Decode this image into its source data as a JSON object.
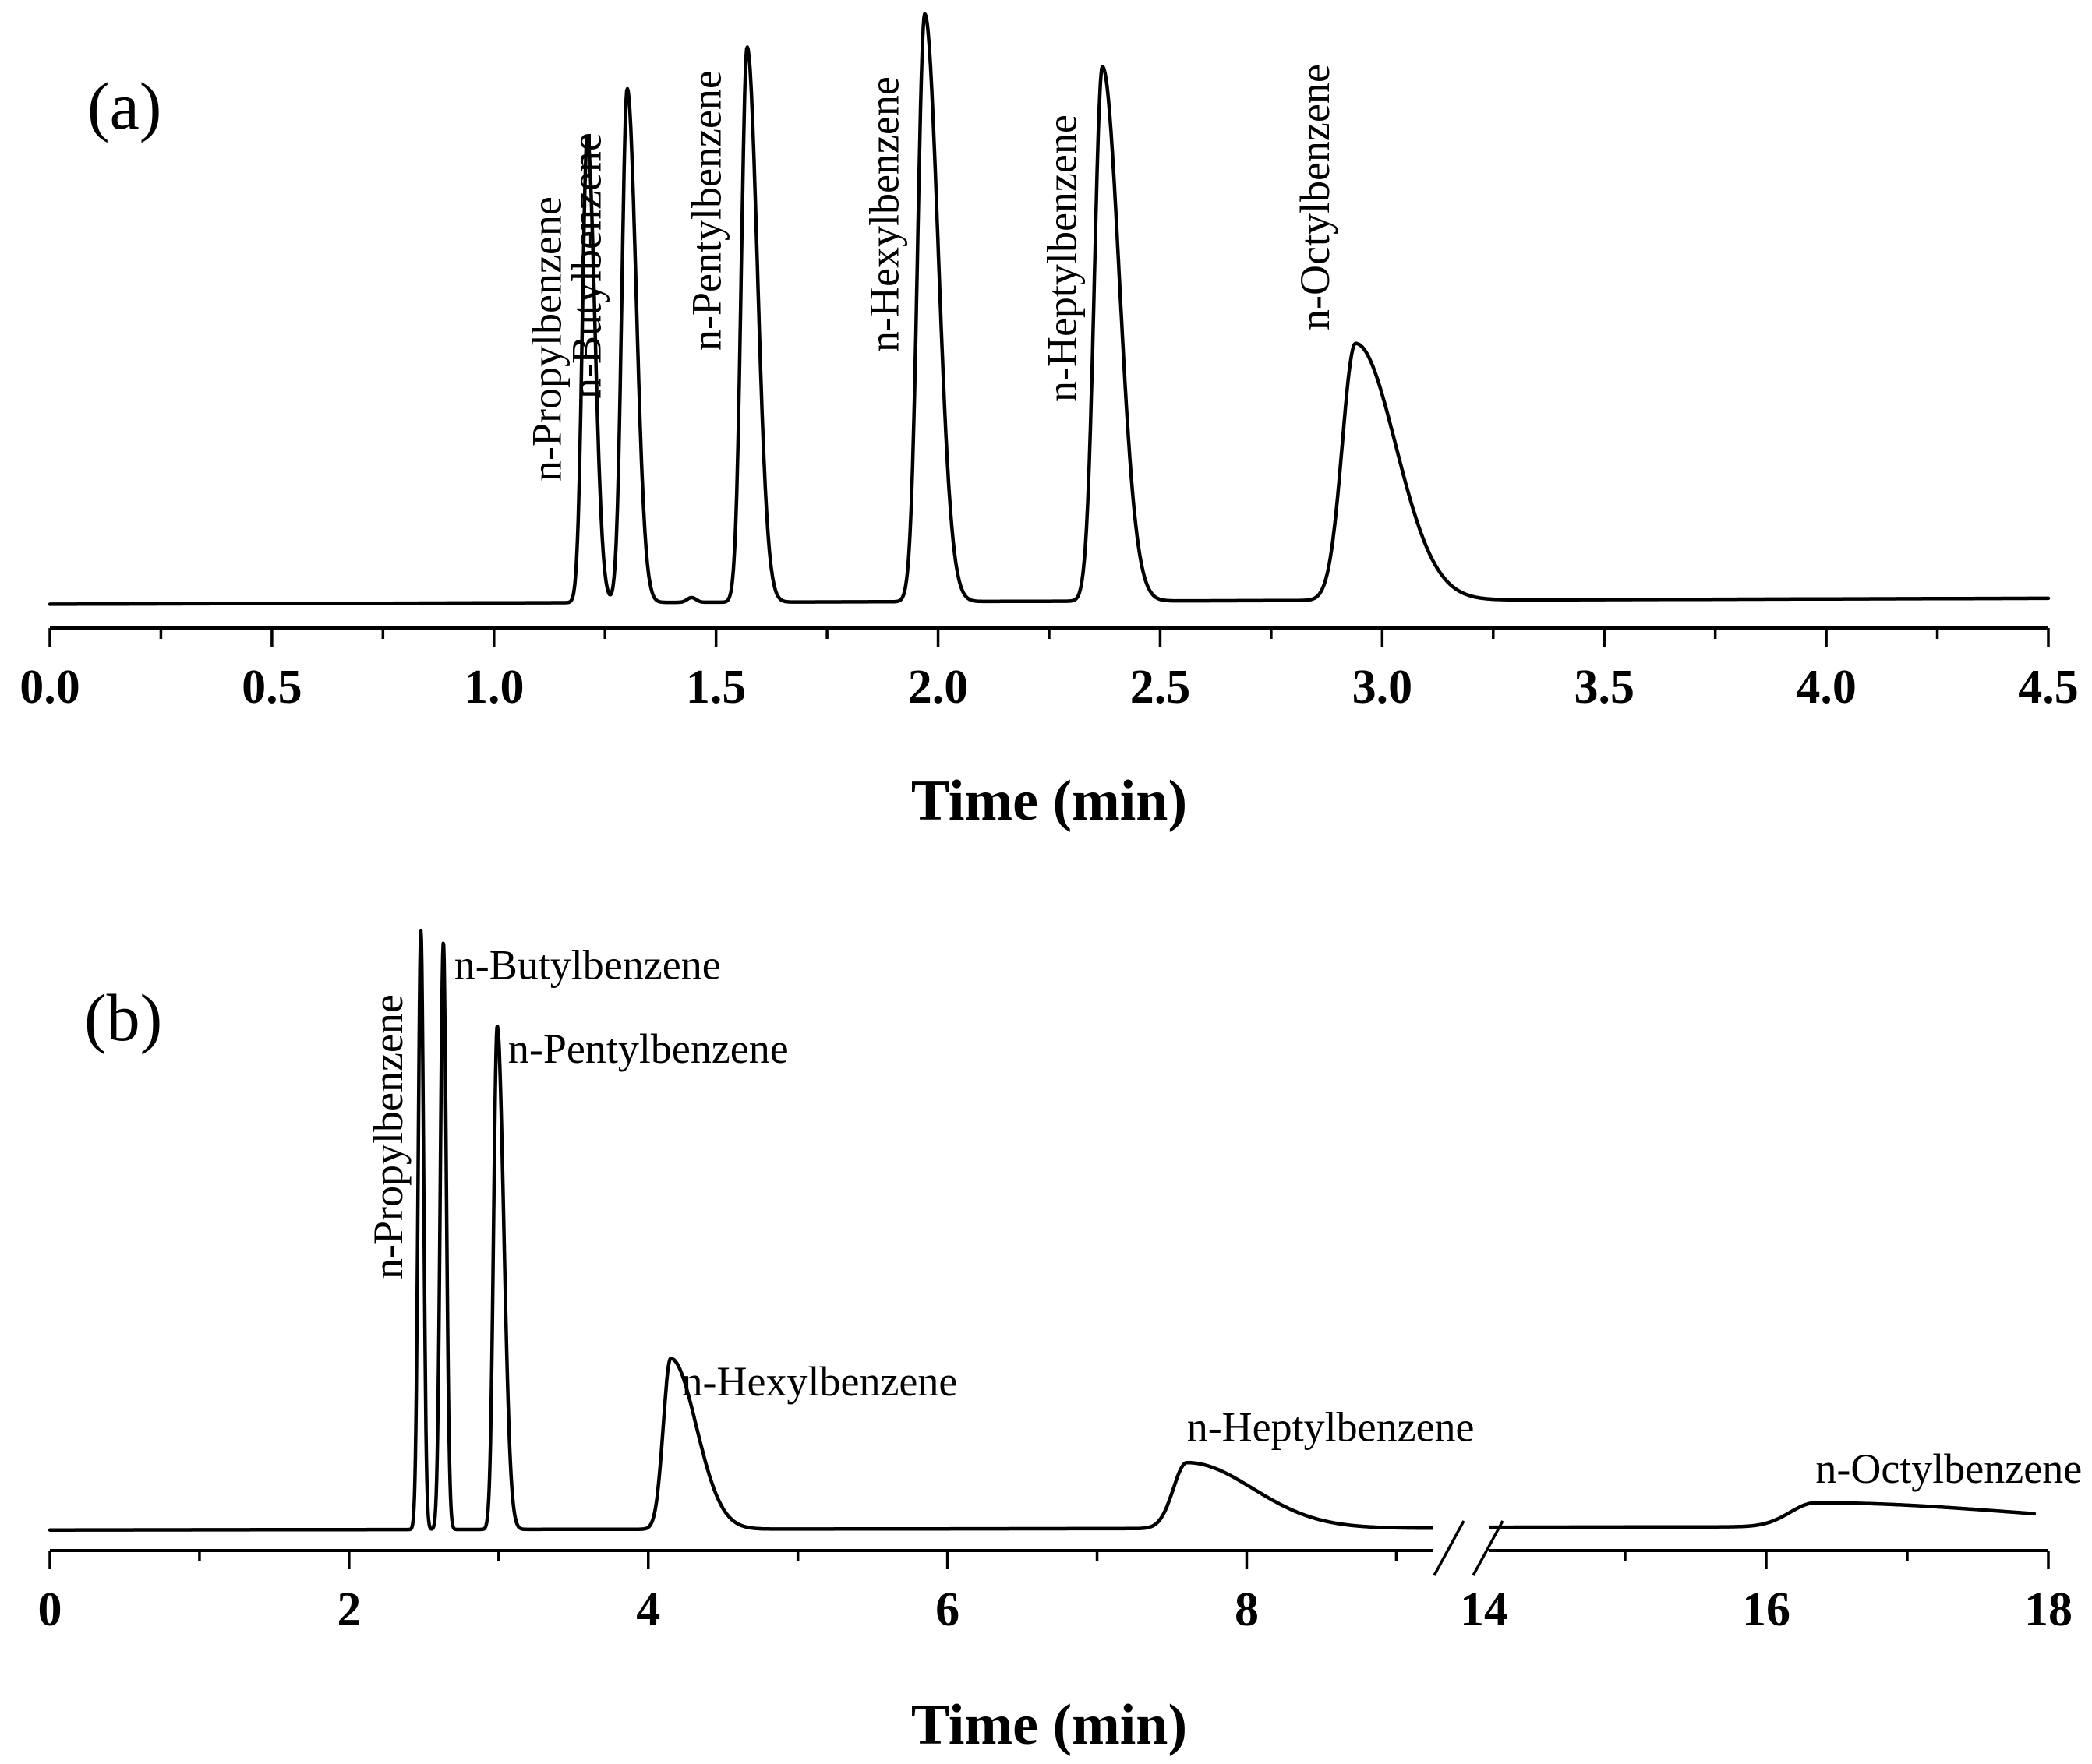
{
  "chart_data": [
    {
      "type": "line",
      "panel_label": "(a)",
      "xlabel": "Time (min)",
      "ylabel": "",
      "xlim": [
        0.0,
        4.5
      ],
      "x_major_ticks": [
        0.0,
        0.5,
        1.0,
        1.5,
        2.0,
        2.5,
        3.0,
        3.5,
        4.0,
        4.5
      ],
      "x_tick_labels": [
        "0.0",
        "0.5",
        "1.0",
        "1.5",
        "2.0",
        "2.5",
        "3.0",
        "3.5",
        "4.0",
        "4.5"
      ],
      "x_minor_step": 0.25,
      "ylim": [
        0,
        100
      ],
      "baseline": {
        "start": 0.6,
        "end": 1.6
      },
      "peaks": [
        {
          "name": "n-Propylbenzene",
          "rt": 1.21,
          "height": 79,
          "sigma": 0.011,
          "tail": 0.006
        },
        {
          "name": "n-Butylbenzene",
          "rt": 1.3,
          "height": 87,
          "sigma": 0.012,
          "tail": 0.008
        },
        {
          "name": "minor",
          "rt": 1.445,
          "height": 0.8,
          "sigma": 0.01,
          "tail": 0.0
        },
        {
          "name": "n-Pentylbenzene",
          "rt": 1.57,
          "height": 94,
          "sigma": 0.013,
          "tail": 0.01
        },
        {
          "name": "n-Hexylbenzene",
          "rt": 1.97,
          "height": 99.5,
          "sigma": 0.016,
          "tail": 0.014
        },
        {
          "name": "n-Heptylbenzene",
          "rt": 2.37,
          "height": 90.5,
          "sigma": 0.018,
          "tail": 0.02
        },
        {
          "name": "n-Octylbenzene",
          "rt": 2.94,
          "height": 43.5,
          "sigma": 0.03,
          "tail": 0.06
        }
      ],
      "label_orientation": "vertical"
    },
    {
      "type": "line",
      "panel_label": "(b)",
      "xlabel": "Time (min)",
      "ylabel": "",
      "axis_break": {
        "from": 9.3,
        "to": 14.0
      },
      "segments": [
        {
          "xlim": [
            0,
            9.3
          ],
          "ticks": [
            0,
            2,
            4,
            6,
            8
          ],
          "tick_labels": [
            "0",
            "2",
            "4",
            "6",
            "8"
          ],
          "minor_step": 1
        },
        {
          "xlim": [
            14,
            18
          ],
          "ticks": [
            14,
            16,
            18
          ],
          "tick_labels": [
            "14",
            "16",
            "18"
          ],
          "minor_step": 1
        }
      ],
      "ylim": [
        0,
        100
      ],
      "baseline": {
        "start": 0.3,
        "end": 0.9
      },
      "peaks": [
        {
          "name": "n-Propylbenzene",
          "rt": 2.48,
          "height": 100,
          "sigma": 0.018,
          "tail": 0.0
        },
        {
          "name": "n-Butylbenzene",
          "rt": 2.63,
          "height": 98,
          "sigma": 0.02,
          "tail": 0.0
        },
        {
          "name": "n-Pentylbenzene",
          "rt": 2.99,
          "height": 84,
          "sigma": 0.024,
          "tail": 0.02
        },
        {
          "name": "n-Hexylbenzene",
          "rt": 4.15,
          "height": 28.5,
          "sigma": 0.05,
          "tail": 0.12
        },
        {
          "name": "n-Heptylbenzene",
          "rt": 7.6,
          "height": 11,
          "sigma": 0.09,
          "tail": 0.35
        },
        {
          "name": "n-Octylbenzene",
          "rt": 16.35,
          "height": 4,
          "sigma": 0.18,
          "tail": 1.2
        }
      ],
      "label_orientation": "mixed"
    }
  ]
}
